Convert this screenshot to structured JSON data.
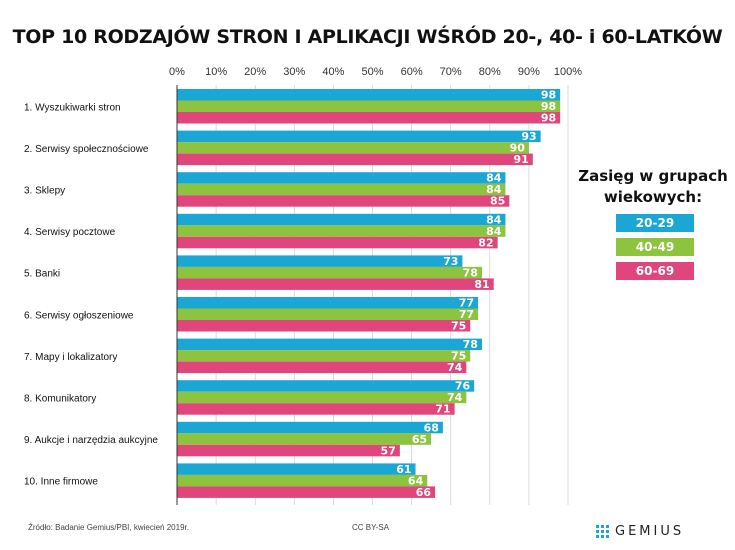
{
  "chart_data": {
    "type": "bar",
    "orientation": "horizontal",
    "title": "TOP 10 RODZAJÓW STRON I APLIKACJI WŚRÓD 20-, 40- i 60-LATKÓW",
    "categories": [
      "1. Wyszukiwarki stron",
      "2. Serwisy społecznościowe",
      "3. Sklepy",
      "4. Serwisy pocztowe",
      "5. Banki",
      "6. Serwisy ogłoszeniowe",
      "7. Mapy i lokalizatory",
      "8. Komunikatory",
      "9. Aukcje i narzędzia aukcyjne",
      "10. Inne firmowe"
    ],
    "series": [
      {
        "name": "20-29",
        "color": "#1aa7d6",
        "values": [
          98,
          93,
          84,
          84,
          73,
          77,
          78,
          76,
          68,
          61
        ]
      },
      {
        "name": "40-49",
        "color": "#8cc43f",
        "values": [
          98,
          90,
          84,
          84,
          78,
          77,
          75,
          74,
          65,
          64
        ]
      },
      {
        "name": "60-69",
        "color": "#e0457b",
        "values": [
          98,
          91,
          85,
          82,
          81,
          75,
          74,
          71,
          57,
          66
        ]
      }
    ],
    "xlim": [
      0,
      100
    ],
    "xticks": [
      "0%",
      "10%",
      "20%",
      "30%",
      "40%",
      "50%",
      "60%",
      "70%",
      "80%",
      "90%",
      "100%"
    ],
    "grid": true,
    "legend_title": "Zasięg w grupach wiekowych:",
    "legend_position": "right"
  },
  "footer": {
    "source": "Źródło: Badanie Gemius/PBI, kwiecień 2019r.",
    "license": "CC BY-SA",
    "brand": "GEMIUS"
  },
  "colors": {
    "brand": "#1aa7d6",
    "grid": "#cccccc",
    "axis": "#333333"
  }
}
